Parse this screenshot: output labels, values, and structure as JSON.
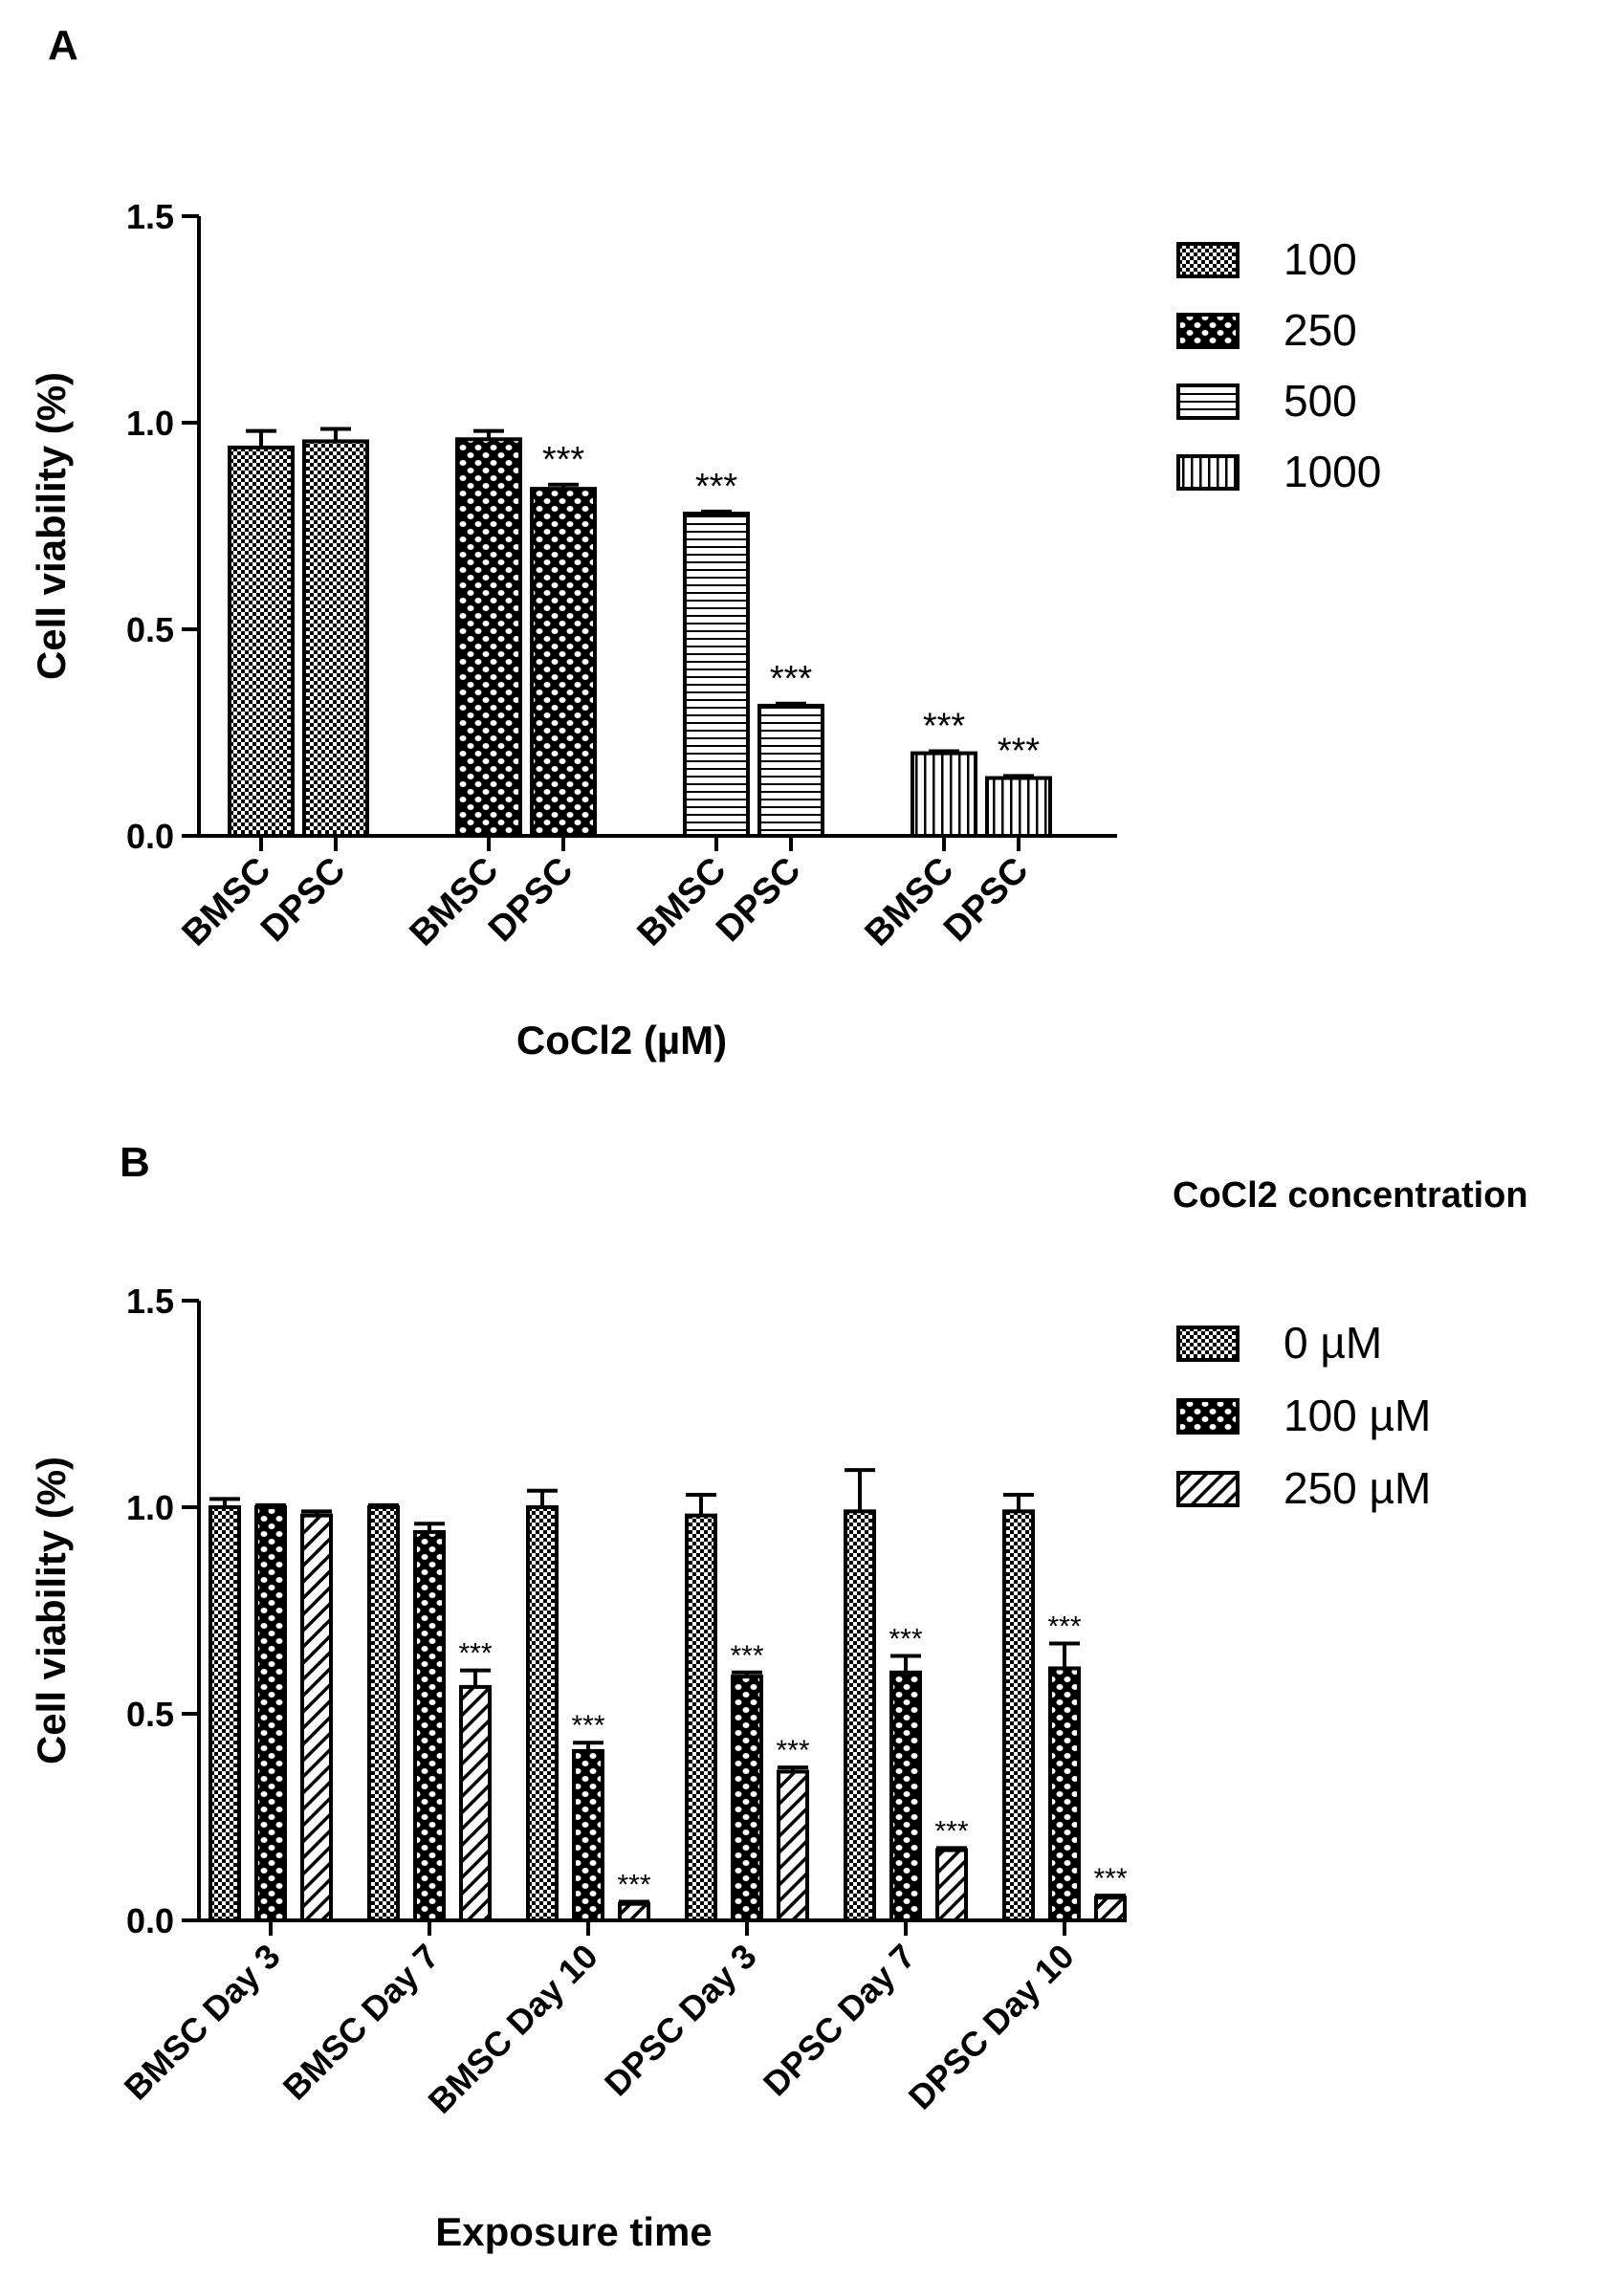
{
  "chart_data": [
    {
      "panel": "A",
      "type": "bar",
      "ylabel": "Cell viability (%)",
      "xlabel": "CoCl2 (µM)",
      "ylim": [
        0,
        1.5
      ],
      "yticks": [
        "0.0",
        "0.5",
        "1.0",
        "1.5"
      ],
      "legend_title": "",
      "legend_position": "right",
      "series": [
        {
          "name": "100",
          "pattern": "checker",
          "bars": [
            {
              "label": "BMSC",
              "value": 0.94,
              "err": 0.04,
              "sig": ""
            },
            {
              "label": "DPSC",
              "value": 0.955,
              "err": 0.03,
              "sig": ""
            }
          ]
        },
        {
          "name": "250",
          "pattern": "dots",
          "bars": [
            {
              "label": "BMSC",
              "value": 0.96,
              "err": 0.02,
              "sig": ""
            },
            {
              "label": "DPSC",
              "value": 0.84,
              "err": 0.01,
              "sig": "***"
            }
          ]
        },
        {
          "name": "500",
          "pattern": "hlines",
          "bars": [
            {
              "label": "BMSC",
              "value": 0.78,
              "err": 0.005,
              "sig": "***"
            },
            {
              "label": "DPSC",
              "value": 0.315,
              "err": 0.005,
              "sig": "***"
            }
          ]
        },
        {
          "name": "1000",
          "pattern": "vlines",
          "bars": [
            {
              "label": "BMSC",
              "value": 0.2,
              "err": 0.005,
              "sig": "***"
            },
            {
              "label": "DPSC",
              "value": 0.14,
              "err": 0.005,
              "sig": "***"
            }
          ]
        }
      ]
    },
    {
      "panel": "B",
      "type": "bar",
      "ylabel": "Cell viability (%)",
      "xlabel": "Exposure time",
      "ylim": [
        0,
        1.5
      ],
      "yticks": [
        "0.0",
        "0.5",
        "1.0",
        "1.5"
      ],
      "legend_title": "CoCl2 concentration",
      "legend_position": "right",
      "categories": [
        "BMSC Day 3",
        "BMSC Day 7",
        "BMSC Day 10",
        "DPSC Day 3",
        "DPSC Day 7",
        "DPSC Day 10"
      ],
      "series": [
        {
          "name": "0 µM",
          "pattern": "checker",
          "values": [
            1.0,
            1.0,
            1.0,
            0.98,
            0.99,
            0.99
          ],
          "errors": [
            0.02,
            0.005,
            0.04,
            0.05,
            0.1,
            0.04
          ],
          "sig": [
            "",
            "",
            "",
            "",
            "",
            ""
          ]
        },
        {
          "name": "100 µM",
          "pattern": "dots",
          "values": [
            1.0,
            0.94,
            0.41,
            0.59,
            0.6,
            0.61
          ],
          "errors": [
            0.005,
            0.02,
            0.02,
            0.01,
            0.04,
            0.06
          ],
          "sig": [
            "",
            "",
            "***",
            "***",
            "***",
            "***"
          ]
        },
        {
          "name": "250 µM",
          "pattern": "diag",
          "values": [
            0.98,
            0.565,
            0.04,
            0.36,
            0.17,
            0.055
          ],
          "errors": [
            0.01,
            0.04,
            0.005,
            0.01,
            0.005,
            0.005
          ],
          "sig": [
            "",
            "***",
            "***",
            "***",
            "***",
            "***"
          ]
        }
      ]
    }
  ]
}
